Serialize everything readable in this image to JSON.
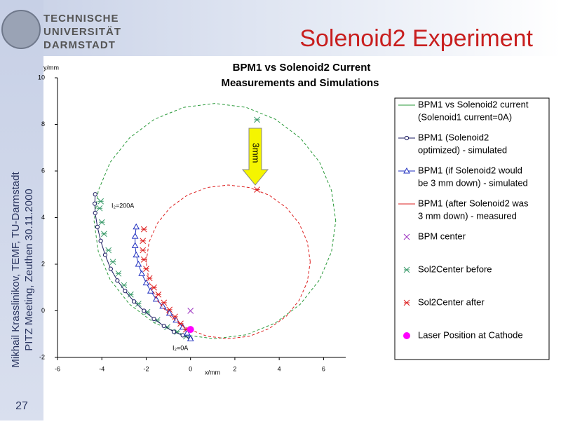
{
  "slide": {
    "title": "Solenoid2 Experiment",
    "logo_lines": [
      "TECHNISCHE",
      "UNIVERSITÄT",
      "DARMSTADT"
    ],
    "sidebar": [
      "Mikhail Krasslinikov, TEMF, TU-Darmstadt",
      "PITZ Meeting, Zeuthen 30.11.2000"
    ],
    "page_number": 27
  },
  "chart_data": {
    "type": "line",
    "title": "BPM1 vs Solenoid2 Current",
    "subtitle": "Measurements and Simulations",
    "x_label": "x/mm",
    "y_label": "y/mm",
    "xlim": [
      -6,
      7
    ],
    "ylim": [
      -2,
      10
    ],
    "xticks": [
      -6,
      -4,
      -2,
      0,
      2,
      4,
      6
    ],
    "yticks": [
      -2,
      0,
      2,
      4,
      6,
      8,
      10
    ],
    "annotations": [
      "I₂=200A",
      "I₂=0A",
      "3mm"
    ],
    "series": [
      {
        "name": [
          "BPM1 vs Solenoid2 current",
          "(Solenoid1 current=0A)"
        ],
        "color": "#2a9a3a",
        "line": true,
        "dashed": true,
        "marker": null,
        "x": [
          6.55,
          6.36,
          5.82,
          4.95,
          3.83,
          2.51,
          1.1,
          -0.31,
          -1.63,
          -2.75,
          -3.62,
          -4.16,
          -4.35,
          -4.16,
          -3.62,
          -2.75,
          -1.63,
          -0.31,
          1.1,
          2.51,
          3.83,
          4.95,
          5.82,
          6.36,
          6.55
        ],
        "y": [
          3.85,
          5.16,
          6.38,
          7.42,
          8.22,
          8.73,
          8.9,
          8.73,
          8.22,
          7.42,
          6.38,
          5.16,
          3.85,
          2.54,
          1.33,
          0.28,
          -0.52,
          -1.03,
          -1.2,
          -1.03,
          -0.52,
          0.28,
          1.33,
          2.54,
          3.85
        ],
        "measured": {
          "marker": "asterisk",
          "color": "#3a9a6a",
          "x": [
            -4.05,
            -4.1,
            -4.0,
            -3.9,
            -3.7,
            -3.5,
            -3.25,
            -3.0,
            -2.7,
            -2.35,
            -1.95,
            -1.5,
            -1.05,
            -0.6,
            -0.2
          ],
          "y": [
            4.7,
            4.4,
            3.8,
            3.3,
            2.6,
            2.1,
            1.6,
            1.1,
            0.7,
            0.3,
            -0.05,
            -0.4,
            -0.7,
            -0.9,
            -1.1
          ]
        }
      },
      {
        "name": [
          "BPM1 (Solenoid2",
          "optimized) - simulated"
        ],
        "color": "#1a1a60",
        "line": true,
        "dashed": false,
        "marker": "circle",
        "x": [
          -4.3,
          -4.32,
          -4.3,
          -4.2,
          -4.05,
          -3.85,
          -3.6,
          -3.3,
          -2.95,
          -2.55,
          -2.1,
          -1.65,
          -1.2,
          -0.75,
          -0.35,
          0
        ],
        "y": [
          5.0,
          4.6,
          4.2,
          3.6,
          3.0,
          2.4,
          1.8,
          1.3,
          0.85,
          0.4,
          0.0,
          -0.35,
          -0.65,
          -0.9,
          -1.05,
          -1.2
        ]
      },
      {
        "name": [
          "BPM1 (if Solenoid2 would",
          "be 3 mm down) - simulated"
        ],
        "color": "#1f2fbf",
        "line": true,
        "dashed": false,
        "marker": "triangle",
        "x": [
          -2.45,
          -2.5,
          -2.5,
          -2.45,
          -2.35,
          -2.2,
          -2.0,
          -1.8,
          -1.55,
          -1.25,
          -0.95,
          -0.65,
          -0.35,
          -0.15,
          0
        ],
        "y": [
          3.6,
          3.2,
          2.8,
          2.4,
          2.0,
          1.6,
          1.2,
          0.85,
          0.5,
          0.2,
          -0.1,
          -0.4,
          -0.7,
          -0.95,
          -1.2
        ]
      },
      {
        "name": [
          "BPM1 (after Solenoid2 was",
          "3 mm down) - measured"
        ],
        "color": "#dd2020",
        "line": true,
        "dashed": true,
        "marker": null,
        "x": [
          5.4,
          5.27,
          4.9,
          4.32,
          3.55,
          2.66,
          1.7,
          0.74,
          -0.15,
          -0.92,
          -1.5,
          -1.87,
          -2.0,
          -1.87,
          -1.5,
          -0.92,
          -0.15,
          0.74,
          1.7,
          2.66,
          3.55,
          4.32,
          4.9,
          5.27,
          5.4
        ],
        "y": [
          2.1,
          2.95,
          3.75,
          4.43,
          4.96,
          5.29,
          5.4,
          5.29,
          4.96,
          4.43,
          3.75,
          2.95,
          2.1,
          1.25,
          0.45,
          -0.23,
          -0.76,
          -1.09,
          -1.2,
          -1.09,
          -0.76,
          -0.23,
          0.45,
          1.25,
          2.1
        ],
        "measured": {
          "marker": "asterisk",
          "color": "#dd2020",
          "x": [
            -2.1,
            -2.15,
            -2.15,
            -2.1,
            -2.0,
            -1.85,
            -1.65,
            -1.45,
            -1.2,
            -0.95,
            -0.7,
            -0.45,
            -0.2
          ],
          "y": [
            3.5,
            3.0,
            2.6,
            2.2,
            1.8,
            1.4,
            1.0,
            0.7,
            0.35,
            0.05,
            -0.25,
            -0.55,
            -0.8
          ]
        }
      },
      {
        "name": [
          "BPM center"
        ],
        "color": "#9b30c0",
        "line": false,
        "dashed": false,
        "marker": "x",
        "x": [
          0
        ],
        "y": [
          0
        ]
      },
      {
        "name": [
          "Sol2Center before"
        ],
        "color": "#3a9a6a",
        "line": false,
        "dashed": false,
        "marker": "asterisk",
        "x": [
          3
        ],
        "y": [
          8.2
        ]
      },
      {
        "name": [
          "Sol2Center after"
        ],
        "color": "#dd2020",
        "line": false,
        "dashed": false,
        "marker": "asterisk",
        "x": [
          3
        ],
        "y": [
          5.2
        ]
      },
      {
        "name": [
          "Laser Position at Cathode"
        ],
        "color": "#ff00ff",
        "line": false,
        "dashed": false,
        "marker": "dot",
        "x": [
          0
        ],
        "y": [
          -0.8
        ]
      }
    ]
  }
}
